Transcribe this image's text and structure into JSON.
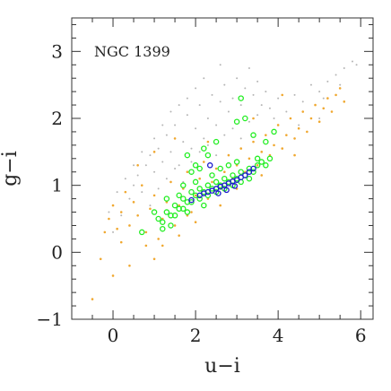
{
  "chart_data": {
    "type": "scatter",
    "title": "",
    "annotation": "NGC 1399",
    "xlabel": "u−i",
    "ylabel": "g−i",
    "xlim": [
      -1,
      6.3
    ],
    "ylim": [
      -1,
      3.5
    ],
    "xticks": [
      {
        "value": 0,
        "label": "0"
      },
      {
        "value": 2,
        "label": "2"
      },
      {
        "value": 4,
        "label": "4"
      },
      {
        "value": 6,
        "label": "6"
      }
    ],
    "yticks": [
      {
        "value": -1,
        "label": "−1"
      },
      {
        "value": 0,
        "label": "0"
      },
      {
        "value": 1,
        "label": "1"
      },
      {
        "value": 2,
        "label": "2"
      },
      {
        "value": 3,
        "label": "3"
      }
    ],
    "grid": false,
    "series": [
      {
        "key": "grey",
        "color": "#b5b5b5",
        "marker": "dot",
        "points": [
          [
            0.2,
            0.55
          ],
          [
            0.4,
            0.8
          ],
          [
            0.5,
            1.0
          ],
          [
            0.6,
            1.15
          ],
          [
            0.7,
            0.9
          ],
          [
            0.8,
            1.3
          ],
          [
            0.9,
            1.45
          ],
          [
            1.0,
            1.2
          ],
          [
            1.1,
            1.55
          ],
          [
            1.2,
            1.35
          ],
          [
            1.3,
            1.75
          ],
          [
            1.4,
            1.5
          ],
          [
            1.5,
            1.9
          ],
          [
            1.6,
            1.3
          ],
          [
            1.7,
            1.65
          ],
          [
            1.8,
            2.05
          ],
          [
            1.9,
            1.55
          ],
          [
            2.0,
            1.85
          ],
          [
            2.1,
            2.2
          ],
          [
            2.2,
            1.7
          ],
          [
            2.3,
            2.0
          ],
          [
            2.4,
            2.35
          ],
          [
            2.5,
            1.9
          ],
          [
            2.6,
            2.25
          ],
          [
            2.7,
            2.5
          ],
          [
            2.8,
            2.1
          ],
          [
            2.9,
            2.3
          ],
          [
            3.0,
            2.6
          ],
          [
            3.1,
            2.2
          ],
          [
            3.2,
            2.45
          ],
          [
            3.3,
            2.75
          ],
          [
            3.4,
            2.35
          ],
          [
            3.5,
            2.55
          ],
          [
            3.6,
            2.2
          ],
          [
            3.7,
            2.4
          ],
          [
            3.8,
            2.15
          ],
          [
            3.9,
            2.0
          ],
          [
            4.0,
            2.3
          ],
          [
            4.2,
            2.1
          ],
          [
            4.4,
            2.35
          ],
          [
            4.6,
            2.25
          ],
          [
            4.8,
            2.5
          ],
          [
            5.0,
            2.4
          ],
          [
            5.2,
            2.55
          ],
          [
            5.4,
            2.65
          ],
          [
            5.6,
            2.75
          ],
          [
            5.8,
            2.85
          ],
          [
            5.9,
            2.8
          ],
          [
            5.5,
            2.5
          ],
          [
            5.1,
            2.3
          ],
          [
            0.9,
            0.7
          ],
          [
            1.1,
            0.95
          ],
          [
            1.3,
            1.1
          ],
          [
            1.5,
            1.25
          ],
          [
            1.7,
            1.05
          ],
          [
            1.9,
            1.35
          ],
          [
            2.1,
            1.5
          ],
          [
            2.3,
            1.6
          ],
          [
            2.5,
            1.45
          ],
          [
            2.7,
            1.75
          ],
          [
            2.9,
            1.85
          ],
          [
            3.1,
            1.7
          ],
          [
            3.3,
            1.95
          ],
          [
            3.5,
            2.05
          ],
          [
            1.0,
            1.7
          ],
          [
            1.2,
            1.9
          ],
          [
            1.4,
            2.1
          ],
          [
            1.6,
            2.2
          ],
          [
            1.8,
            2.3
          ],
          [
            2.0,
            2.45
          ],
          [
            0.3,
            1.1
          ],
          [
            0.5,
            1.3
          ],
          [
            0.7,
            1.5
          ],
          [
            0.1,
            0.9
          ],
          [
            -0.1,
            0.6
          ],
          [
            0.0,
            0.3
          ],
          [
            2.2,
            2.6
          ],
          [
            2.6,
            2.8
          ],
          [
            4.5,
            1.9
          ],
          [
            5.0,
            2.0
          ]
        ]
      },
      {
        "key": "orange",
        "color": "#f0a830",
        "marker": "dot",
        "points": [
          [
            -0.3,
            -0.1
          ],
          [
            -0.2,
            0.3
          ],
          [
            -0.1,
            0.5
          ],
          [
            0.0,
            0.7
          ],
          [
            0.1,
            0.35
          ],
          [
            0.2,
            0.6
          ],
          [
            0.3,
            0.9
          ],
          [
            0.4,
            0.4
          ],
          [
            0.5,
            0.75
          ],
          [
            0.6,
            0.55
          ],
          [
            0.7,
            1.0
          ],
          [
            0.8,
            0.3
          ],
          [
            0.9,
            0.65
          ],
          [
            1.0,
            0.85
          ],
          [
            1.1,
            0.2
          ],
          [
            1.2,
            0.5
          ],
          [
            1.3,
            0.75
          ],
          [
            1.4,
            1.05
          ],
          [
            1.5,
            0.4
          ],
          [
            1.6,
            0.7
          ],
          [
            1.7,
            0.95
          ],
          [
            1.8,
            1.2
          ],
          [
            1.9,
            0.6
          ],
          [
            2.0,
            0.85
          ],
          [
            2.1,
            1.1
          ],
          [
            2.2,
            1.35
          ],
          [
            2.3,
            0.8
          ],
          [
            2.4,
            1.05
          ],
          [
            2.5,
            1.25
          ],
          [
            2.6,
            0.95
          ],
          [
            2.7,
            1.2
          ],
          [
            2.8,
            1.45
          ],
          [
            2.9,
            1.1
          ],
          [
            3.0,
            1.3
          ],
          [
            3.1,
            1.55
          ],
          [
            3.2,
            1.2
          ],
          [
            3.3,
            1.4
          ],
          [
            3.4,
            1.65
          ],
          [
            3.5,
            1.3
          ],
          [
            3.6,
            1.5
          ],
          [
            3.7,
            1.75
          ],
          [
            3.8,
            1.45
          ],
          [
            3.9,
            1.6
          ],
          [
            4.0,
            1.9
          ],
          [
            4.1,
            1.55
          ],
          [
            4.2,
            1.75
          ],
          [
            4.3,
            2.0
          ],
          [
            4.4,
            1.7
          ],
          [
            4.5,
            1.85
          ],
          [
            4.6,
            2.1
          ],
          [
            4.7,
            1.8
          ],
          [
            4.8,
            2.0
          ],
          [
            4.9,
            2.2
          ],
          [
            5.0,
            1.95
          ],
          [
            5.1,
            2.15
          ],
          [
            5.2,
            2.3
          ],
          [
            5.3,
            2.1
          ],
          [
            5.4,
            2.35
          ],
          [
            5.5,
            2.45
          ],
          [
            5.6,
            2.25
          ],
          [
            -0.5,
            -0.7
          ],
          [
            0.0,
            -0.35
          ],
          [
            0.4,
            -0.2
          ],
          [
            1.0,
            -0.1
          ],
          [
            0.6,
            1.3
          ],
          [
            1.0,
            1.5
          ],
          [
            1.5,
            1.7
          ],
          [
            2.3,
            1.65
          ],
          [
            3.4,
            2.0
          ],
          [
            4.1,
            2.35
          ],
          [
            0.8,
            0.1
          ],
          [
            1.2,
            0.1
          ],
          [
            1.6,
            0.25
          ],
          [
            2.0,
            0.45
          ],
          [
            0.2,
            0.15
          ],
          [
            1.8,
            0.55
          ],
          [
            2.6,
            0.7
          ],
          [
            3.0,
            0.95
          ],
          [
            3.6,
            1.15
          ],
          [
            4.4,
            1.45
          ]
        ]
      },
      {
        "key": "green",
        "color": "#22ee22",
        "marker": "open-circle",
        "points": [
          [
            1.1,
            0.5
          ],
          [
            1.2,
            0.45
          ],
          [
            1.3,
            0.6
          ],
          [
            1.4,
            0.55
          ],
          [
            1.5,
            0.7
          ],
          [
            1.6,
            0.65
          ],
          [
            1.7,
            0.8
          ],
          [
            1.8,
            0.75
          ],
          [
            1.9,
            0.9
          ],
          [
            2.0,
            0.85
          ],
          [
            2.1,
            0.95
          ],
          [
            2.2,
            0.9
          ],
          [
            2.3,
            1.0
          ],
          [
            2.4,
            0.95
          ],
          [
            2.5,
            1.05
          ],
          [
            2.6,
            1.0
          ],
          [
            2.7,
            1.1
          ],
          [
            2.8,
            1.05
          ],
          [
            2.9,
            1.15
          ],
          [
            3.0,
            1.1
          ],
          [
            3.1,
            1.2
          ],
          [
            3.2,
            1.15
          ],
          [
            3.3,
            1.25
          ],
          [
            3.4,
            1.2
          ],
          [
            3.5,
            1.3
          ],
          [
            3.6,
            1.35
          ],
          [
            3.7,
            1.3
          ],
          [
            3.8,
            1.4
          ],
          [
            1.5,
            0.55
          ],
          [
            1.7,
            0.65
          ],
          [
            1.9,
            0.75
          ],
          [
            2.1,
            0.8
          ],
          [
            2.3,
            0.85
          ],
          [
            2.5,
            0.9
          ],
          [
            2.7,
            0.95
          ],
          [
            2.9,
            1.0
          ],
          [
            3.1,
            1.05
          ],
          [
            3.3,
            1.1
          ],
          [
            1.6,
            0.85
          ],
          [
            2.0,
            1.05
          ],
          [
            2.4,
            1.15
          ],
          [
            2.8,
            1.3
          ],
          [
            1.2,
            0.35
          ],
          [
            1.4,
            0.4
          ],
          [
            1.8,
            0.6
          ],
          [
            2.2,
            0.7
          ],
          [
            1.3,
            0.8
          ],
          [
            1.7,
            1.0
          ],
          [
            2.6,
            1.25
          ],
          [
            3.0,
            1.35
          ],
          [
            1.8,
            1.45
          ],
          [
            2.0,
            1.3
          ],
          [
            2.2,
            1.55
          ],
          [
            2.1,
            1.25
          ],
          [
            1.9,
            1.2
          ],
          [
            0.7,
            0.3
          ],
          [
            1.0,
            0.6
          ],
          [
            2.5,
            1.65
          ],
          [
            3.0,
            1.95
          ],
          [
            3.4,
            1.75
          ],
          [
            3.7,
            1.65
          ],
          [
            3.9,
            1.8
          ],
          [
            3.2,
            2.0
          ],
          [
            3.1,
            2.3
          ],
          [
            3.5,
            1.4
          ],
          [
            2.3,
            1.45
          ]
        ]
      },
      {
        "key": "blue",
        "color": "#1a1acc",
        "marker": "open-circle",
        "points": [
          [
            2.1,
            0.85
          ],
          [
            2.2,
            0.88
          ],
          [
            2.3,
            0.9
          ],
          [
            2.4,
            0.92
          ],
          [
            2.5,
            0.95
          ],
          [
            2.6,
            0.98
          ],
          [
            2.7,
            1.0
          ],
          [
            2.8,
            1.03
          ],
          [
            2.9,
            1.06
          ],
          [
            3.0,
            1.08
          ],
          [
            3.1,
            1.12
          ],
          [
            3.2,
            1.15
          ],
          [
            3.3,
            1.2
          ],
          [
            3.4,
            1.25
          ],
          [
            2.35,
            1.3
          ],
          [
            2.55,
            0.88
          ],
          [
            2.75,
            0.93
          ],
          [
            2.95,
            0.99
          ],
          [
            1.9,
            0.78
          ]
        ]
      }
    ]
  }
}
